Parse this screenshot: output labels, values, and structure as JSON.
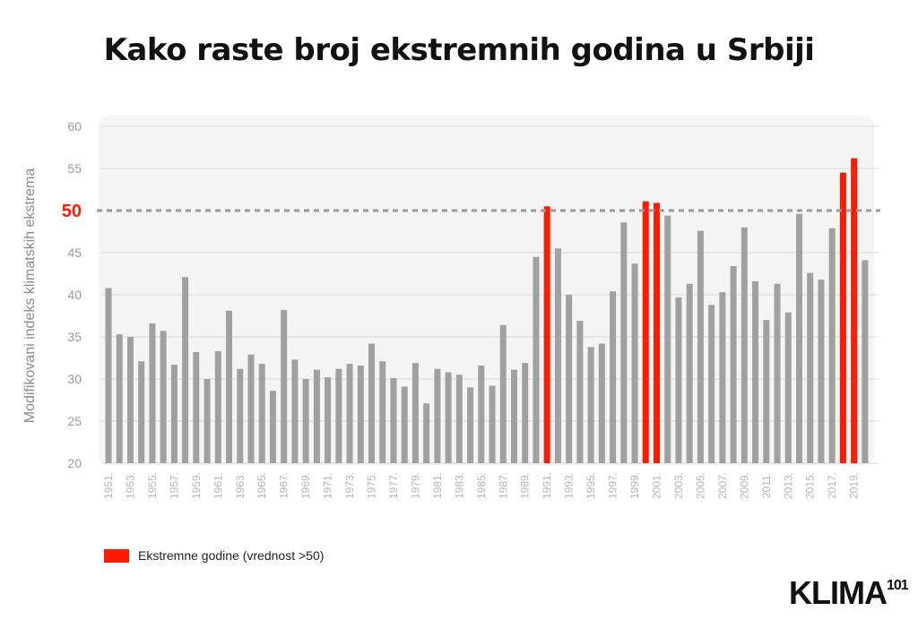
{
  "title": "Kako raste broj ekstremnih godina u Srbiji",
  "legend": {
    "label": "Ekstremne godine (vrednost >50)"
  },
  "logo": {
    "text": "KLIMA",
    "sup": "101"
  },
  "colors": {
    "normal": "#a0a0a0",
    "extreme": "#ff1a00",
    "threshold_line": "#9a9a9a",
    "threshold_label": "#ff1a00",
    "panel": "#f4f4f4"
  },
  "chart_data": {
    "type": "bar",
    "title": "Kako raste broj ekstremnih godina u Srbiji",
    "xlabel": "",
    "ylabel": "Modifikovani indeks klimatskih ekstrema",
    "ylim": [
      20,
      60
    ],
    "yticks": [
      20,
      25,
      30,
      35,
      40,
      45,
      50,
      55,
      60
    ],
    "threshold": 50,
    "grid": true,
    "legend_position": "bottom-left",
    "categories": [
      "1951.",
      "1952.",
      "1953.",
      "1954.",
      "1955.",
      "1956.",
      "1957.",
      "1958.",
      "1959.",
      "1960.",
      "1961.",
      "1962.",
      "1963.",
      "1964.",
      "1965.",
      "1966.",
      "1967.",
      "1968.",
      "1969.",
      "1970.",
      "1971.",
      "1972.",
      "1973.",
      "1974.",
      "1975.",
      "1976.",
      "1977.",
      "1978.",
      "1979.",
      "1980.",
      "1981.",
      "1982.",
      "1983.",
      "1984.",
      "1985.",
      "1986.",
      "1987.",
      "1988.",
      "1989.",
      "1990.",
      "1991.",
      "1992.",
      "1993.",
      "1994.",
      "1995.",
      "1996.",
      "1997.",
      "1998.",
      "1999.",
      "2000.",
      "2001.",
      "2002.",
      "2003.",
      "2004.",
      "2005.",
      "2006.",
      "2007.",
      "2008.",
      "2009.",
      "2010.",
      "2011.",
      "2012.",
      "2013.",
      "2014.",
      "2015.",
      "2016.",
      "2017.",
      "2018.",
      "2019.",
      "2020."
    ],
    "tick_labels_shown": [
      "1951.",
      "1953.",
      "1955.",
      "1957.",
      "1959.",
      "1961.",
      "1963.",
      "1965.",
      "1967.",
      "1969.",
      "1971.",
      "1973.",
      "1975.",
      "1977.",
      "1979.",
      "1981.",
      "1983.",
      "1985.",
      "1987.",
      "1989.",
      "1991.",
      "1993.",
      "1995.",
      "1997.",
      "1999.",
      "2001.",
      "2003.",
      "2005.",
      "2007.",
      "2009.",
      "2011.",
      "2013.",
      "2015.",
      "2017.",
      "2019."
    ],
    "values": [
      40.8,
      35.3,
      35.0,
      32.1,
      36.6,
      35.7,
      31.7,
      42.1,
      33.2,
      30.0,
      33.3,
      38.1,
      31.2,
      32.9,
      31.8,
      28.6,
      38.2,
      32.3,
      30.0,
      31.1,
      30.2,
      31.2,
      31.8,
      31.6,
      34.2,
      32.1,
      30.1,
      29.1,
      31.9,
      27.1,
      31.2,
      30.8,
      30.5,
      29.0,
      31.6,
      29.2,
      36.4,
      31.1,
      31.9,
      44.5,
      50.5,
      45.5,
      40.0,
      36.9,
      33.8,
      34.2,
      40.4,
      48.6,
      43.7,
      51.1,
      50.9,
      49.4,
      39.7,
      41.3,
      47.6,
      38.8,
      40.3,
      43.4,
      48.0,
      41.6,
      37.0,
      41.3,
      37.9,
      49.6,
      42.6,
      41.8,
      47.9,
      54.5,
      56.2,
      44.1
    ]
  }
}
